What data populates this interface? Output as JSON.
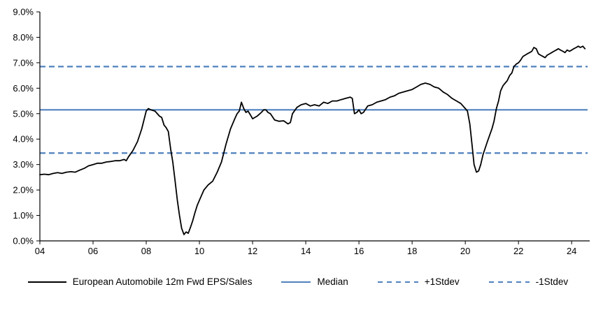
{
  "accent_color": "#4f81bd",
  "series_color": "#000000",
  "chart_data": {
    "type": "line",
    "title": "",
    "xlabel": "",
    "ylabel": "",
    "ylim": [
      0,
      9
    ],
    "ytick_step": 1,
    "ytick_suffix": "%",
    "xlim": [
      2004,
      2024.6
    ],
    "xticks": [
      2004,
      2006,
      2008,
      2010,
      2012,
      2014,
      2016,
      2018,
      2020,
      2022,
      2024
    ],
    "xtick_labels": [
      "04",
      "06",
      "08",
      "10",
      "12",
      "14",
      "16",
      "18",
      "20",
      "22",
      "24"
    ],
    "grid": false,
    "legend_position": "bottom",
    "series": [
      {
        "name": "European Automobile 12m Fwd EPS/Sales",
        "color": "#000000",
        "style": "solid",
        "x": [
          2004.0,
          2004.17,
          2004.33,
          2004.5,
          2004.67,
          2004.83,
          2005.0,
          2005.17,
          2005.33,
          2005.5,
          2005.67,
          2005.83,
          2006.0,
          2006.17,
          2006.33,
          2006.5,
          2006.67,
          2006.83,
          2007.0,
          2007.17,
          2007.25,
          2007.33,
          2007.5,
          2007.67,
          2007.83,
          2008.0,
          2008.08,
          2008.17,
          2008.33,
          2008.5,
          2008.58,
          2008.67,
          2008.75,
          2008.83,
          2008.92,
          2009.0,
          2009.08,
          2009.17,
          2009.25,
          2009.33,
          2009.42,
          2009.5,
          2009.58,
          2009.67,
          2009.75,
          2009.83,
          2009.92,
          2010.0,
          2010.17,
          2010.33,
          2010.5,
          2010.67,
          2010.83,
          2011.0,
          2011.17,
          2011.33,
          2011.42,
          2011.5,
          2011.58,
          2011.67,
          2011.75,
          2011.83,
          2011.92,
          2012.0,
          2012.17,
          2012.33,
          2012.42,
          2012.5,
          2012.58,
          2012.67,
          2012.83,
          2013.0,
          2013.17,
          2013.33,
          2013.42,
          2013.5,
          2013.67,
          2013.83,
          2014.0,
          2014.17,
          2014.33,
          2014.5,
          2014.67,
          2014.83,
          2015.0,
          2015.17,
          2015.33,
          2015.5,
          2015.67,
          2015.75,
          2015.83,
          2015.92,
          2016.0,
          2016.08,
          2016.17,
          2016.33,
          2016.5,
          2016.67,
          2016.83,
          2017.0,
          2017.17,
          2017.33,
          2017.5,
          2017.67,
          2017.83,
          2018.0,
          2018.17,
          2018.33,
          2018.5,
          2018.67,
          2018.83,
          2019.0,
          2019.17,
          2019.33,
          2019.5,
          2019.67,
          2019.83,
          2020.0,
          2020.08,
          2020.17,
          2020.25,
          2020.33,
          2020.42,
          2020.5,
          2020.58,
          2020.67,
          2020.83,
          2021.0,
          2021.08,
          2021.17,
          2021.25,
          2021.33,
          2021.42,
          2021.5,
          2021.58,
          2021.67,
          2021.75,
          2021.83,
          2021.92,
          2022.0,
          2022.08,
          2022.17,
          2022.25,
          2022.33,
          2022.42,
          2022.5,
          2022.58,
          2022.67,
          2022.75,
          2022.83,
          2022.92,
          2023.0,
          2023.08,
          2023.17,
          2023.25,
          2023.33,
          2023.42,
          2023.5,
          2023.58,
          2023.67,
          2023.75,
          2023.83,
          2023.92,
          2024.0,
          2024.08,
          2024.17,
          2024.25,
          2024.33,
          2024.42,
          2024.5
        ],
        "y": [
          2.6,
          2.62,
          2.6,
          2.65,
          2.68,
          2.65,
          2.7,
          2.72,
          2.7,
          2.78,
          2.85,
          2.95,
          3.0,
          3.05,
          3.05,
          3.1,
          3.12,
          3.15,
          3.15,
          3.2,
          3.15,
          3.3,
          3.55,
          3.9,
          4.4,
          5.1,
          5.2,
          5.15,
          5.1,
          4.9,
          4.85,
          4.55,
          4.45,
          4.3,
          3.6,
          3.1,
          2.4,
          1.6,
          1.0,
          0.5,
          0.25,
          0.35,
          0.3,
          0.55,
          0.8,
          1.1,
          1.4,
          1.6,
          2.0,
          2.2,
          2.35,
          2.7,
          3.1,
          3.8,
          4.4,
          4.8,
          5.0,
          5.1,
          5.45,
          5.2,
          5.05,
          5.1,
          4.95,
          4.8,
          4.9,
          5.05,
          5.15,
          5.15,
          5.05,
          5.0,
          4.75,
          4.7,
          4.72,
          4.6,
          4.65,
          5.0,
          5.25,
          5.35,
          5.4,
          5.3,
          5.35,
          5.3,
          5.45,
          5.4,
          5.5,
          5.5,
          5.55,
          5.6,
          5.65,
          5.6,
          5.0,
          5.05,
          5.15,
          5.0,
          5.05,
          5.3,
          5.35,
          5.45,
          5.5,
          5.55,
          5.65,
          5.7,
          5.8,
          5.85,
          5.9,
          5.95,
          6.05,
          6.15,
          6.2,
          6.15,
          6.05,
          6.0,
          5.85,
          5.75,
          5.6,
          5.5,
          5.4,
          5.2,
          5.1,
          4.6,
          3.8,
          3.0,
          2.7,
          2.75,
          3.0,
          3.4,
          3.9,
          4.4,
          4.7,
          5.2,
          5.5,
          5.9,
          6.1,
          6.2,
          6.3,
          6.5,
          6.6,
          6.85,
          6.95,
          7.0,
          7.1,
          7.25,
          7.3,
          7.35,
          7.4,
          7.45,
          7.6,
          7.55,
          7.35,
          7.3,
          7.25,
          7.2,
          7.3,
          7.35,
          7.4,
          7.45,
          7.5,
          7.55,
          7.5,
          7.45,
          7.4,
          7.5,
          7.45,
          7.5,
          7.55,
          7.6,
          7.65,
          7.6,
          7.65,
          7.55
        ]
      }
    ],
    "ref_lines": [
      {
        "name": "Median",
        "value": 5.15,
        "color": "#4f81bd",
        "style": "solid"
      },
      {
        "name": "+1Stdev",
        "value": 6.85,
        "color": "#4f81bd",
        "style": "dashed"
      },
      {
        "name": "-1Stdev",
        "value": 3.45,
        "color": "#4f81bd",
        "style": "dashed"
      }
    ],
    "legend": [
      {
        "label": "European Automobile 12m Fwd EPS/Sales",
        "color": "#000000",
        "style": "solid"
      },
      {
        "label": "Median",
        "color": "#4f81bd",
        "style": "solid"
      },
      {
        "label": "+1Stdev",
        "color": "#4f81bd",
        "style": "dashed"
      },
      {
        "label": "-1Stdev",
        "color": "#4f81bd",
        "style": "dashed"
      }
    ]
  }
}
